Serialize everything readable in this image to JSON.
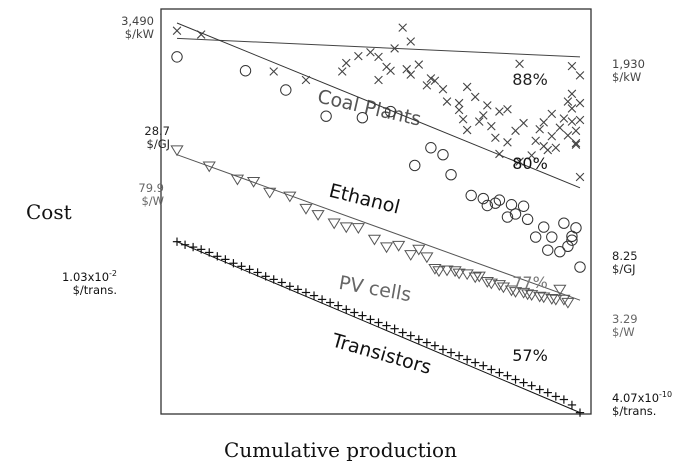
{
  "chart_data": {
    "type": "scatter",
    "ylabel": "Cost",
    "xlabel": "Cumulative production",
    "series": [
      {
        "name": "Coal Plants",
        "rate": "88%",
        "marker": "x",
        "color": "#444444",
        "name_color": "#555555",
        "rate_color": "#222222",
        "start_value": "3,490",
        "start_unit": "$/kW",
        "end_value": "1,930",
        "end_unit": "$/kW",
        "label_color": "#444444",
        "fit": [
          [
            0.0,
            2.0
          ],
          [
            1.0,
            4.4
          ]
        ],
        "points": [
          [
            0.0,
            1.0
          ],
          [
            0.06,
            1.5
          ],
          [
            0.24,
            6.3
          ],
          [
            0.32,
            7.4
          ],
          [
            0.42,
            5.2
          ],
          [
            0.41,
            6.3
          ],
          [
            0.45,
            4.3
          ],
          [
            0.48,
            3.8
          ],
          [
            0.5,
            4.4
          ],
          [
            0.52,
            5.7
          ],
          [
            0.5,
            7.4
          ],
          [
            0.53,
            6.2
          ],
          [
            0.54,
            3.3
          ],
          [
            0.57,
            6.0
          ],
          [
            0.58,
            6.7
          ],
          [
            0.63,
            7.2
          ],
          [
            0.58,
            2.4
          ],
          [
            0.56,
            0.6
          ],
          [
            0.6,
            5.4
          ],
          [
            0.62,
            8.1
          ],
          [
            0.64,
            7.5
          ],
          [
            0.66,
            8.6
          ],
          [
            0.67,
            10.2
          ],
          [
            0.7,
            10.4
          ],
          [
            0.72,
            8.3
          ],
          [
            0.7,
            11.3
          ],
          [
            0.74,
            9.6
          ],
          [
            0.72,
            13.9
          ],
          [
            0.71,
            12.5
          ],
          [
            0.76,
            12.0
          ],
          [
            0.77,
            10.7
          ],
          [
            0.75,
            12.8
          ],
          [
            0.78,
            13.4
          ],
          [
            0.8,
            11.5
          ],
          [
            0.79,
            14.9
          ],
          [
            0.8,
            17.0
          ],
          [
            0.82,
            15.5
          ],
          [
            0.84,
            14.0
          ],
          [
            0.82,
            11.2
          ],
          [
            0.85,
            18.0
          ],
          [
            0.86,
            13.0
          ],
          [
            0.88,
            17.2
          ],
          [
            0.89,
            15.3
          ],
          [
            0.9,
            13.8
          ],
          [
            0.91,
            16.0
          ],
          [
            0.91,
            12.9
          ],
          [
            0.92,
            16.5
          ],
          [
            0.93,
            14.7
          ],
          [
            0.93,
            11.8
          ],
          [
            0.94,
            16.2
          ],
          [
            0.95,
            13.6
          ],
          [
            0.96,
            12.4
          ],
          [
            0.97,
            14.6
          ],
          [
            0.98,
            11.1
          ],
          [
            0.98,
            12.8
          ],
          [
            0.99,
            14.0
          ],
          [
            0.99,
            15.6
          ],
          [
            1.0,
            12.6
          ],
          [
            0.85,
            5.3
          ],
          [
            0.98,
            5.6
          ],
          [
            1.0,
            6.8
          ],
          [
            0.98,
            9.2
          ],
          [
            1.0,
            10.4
          ],
          [
            0.99,
            15.8
          ],
          [
            1.0,
            20.0
          ],
          [
            0.97,
            10.2
          ]
        ]
      },
      {
        "name": "Ethanol",
        "rate": "80%",
        "marker": "o",
        "color": "#333333",
        "name_color": "#111111",
        "rate_color": "#111111",
        "start_value": "28.7",
        "start_unit": "$/GJ",
        "end_value": "8.25",
        "end_unit": "$/GJ",
        "label_color": "#222222",
        "fit": [
          [
            0.0,
            0.0
          ],
          [
            1.0,
            21.4
          ]
        ],
        "points": [
          [
            0.0,
            4.4
          ],
          [
            0.17,
            6.2
          ],
          [
            0.27,
            8.7
          ],
          [
            0.37,
            12.1
          ],
          [
            0.46,
            12.3
          ],
          [
            0.53,
            11.5
          ],
          [
            0.59,
            18.5
          ],
          [
            0.63,
            16.2
          ],
          [
            0.66,
            17.1
          ],
          [
            0.68,
            19.7
          ],
          [
            0.73,
            22.4
          ],
          [
            0.76,
            22.8
          ],
          [
            0.77,
            23.7
          ],
          [
            0.79,
            23.4
          ],
          [
            0.8,
            23.0
          ],
          [
            0.82,
            25.2
          ],
          [
            0.83,
            23.6
          ],
          [
            0.84,
            24.8
          ],
          [
            0.86,
            23.8
          ],
          [
            0.87,
            25.5
          ],
          [
            0.89,
            27.8
          ],
          [
            0.91,
            26.5
          ],
          [
            0.92,
            29.5
          ],
          [
            0.93,
            27.8
          ],
          [
            0.95,
            29.7
          ],
          [
            0.96,
            26.0
          ],
          [
            0.97,
            29.0
          ],
          [
            0.98,
            28.2
          ],
          [
            0.98,
            27.7
          ],
          [
            0.99,
            26.6
          ],
          [
            1.0,
            31.7
          ]
        ]
      },
      {
        "name": "PV cells",
        "rate": "77%",
        "marker": "triangle-down",
        "color": "#555555",
        "name_color": "#666666",
        "rate_color": "#777777",
        "start_value": "79.9",
        "start_unit": "$/W",
        "end_value": "3.29",
        "end_unit": "$/W",
        "label_color": "#666666",
        "fit": [
          [
            0.0,
            17.1
          ],
          [
            1.0,
            36.0
          ]
        ],
        "points": [
          [
            0.0,
            16.5
          ],
          [
            0.08,
            18.6
          ],
          [
            0.15,
            20.3
          ],
          [
            0.19,
            20.6
          ],
          [
            0.23,
            22.0
          ],
          [
            0.28,
            22.5
          ],
          [
            0.32,
            24.1
          ],
          [
            0.35,
            24.9
          ],
          [
            0.39,
            26.0
          ],
          [
            0.42,
            26.5
          ],
          [
            0.45,
            26.6
          ],
          [
            0.49,
            28.1
          ],
          [
            0.52,
            29.1
          ],
          [
            0.55,
            28.9
          ],
          [
            0.58,
            30.1
          ],
          [
            0.6,
            29.4
          ],
          [
            0.62,
            30.4
          ],
          [
            0.64,
            31.9
          ],
          [
            0.65,
            32.2
          ],
          [
            0.67,
            32.1
          ],
          [
            0.69,
            32.2
          ],
          [
            0.7,
            32.5
          ],
          [
            0.72,
            32.6
          ],
          [
            0.74,
            33.0
          ],
          [
            0.75,
            32.9
          ],
          [
            0.77,
            33.6
          ],
          [
            0.78,
            33.8
          ],
          [
            0.8,
            34.0
          ],
          [
            0.81,
            34.3
          ],
          [
            0.83,
            34.7
          ],
          [
            0.84,
            34.9
          ],
          [
            0.86,
            35.0
          ],
          [
            0.87,
            35.2
          ],
          [
            0.88,
            35.3
          ],
          [
            0.9,
            35.5
          ],
          [
            0.91,
            35.6
          ],
          [
            0.93,
            35.8
          ],
          [
            0.94,
            35.9
          ],
          [
            0.96,
            35.9
          ],
          [
            0.97,
            36.3
          ],
          [
            0.95,
            34.6
          ]
        ]
      },
      {
        "name": "Transistors",
        "rate": "57%",
        "marker": "+",
        "color": "#111111",
        "name_color": "#111111",
        "rate_color": "#111111",
        "start_value": "1.03x10-2",
        "start_unit": "$/trans.",
        "end_value": "4.07x10-10",
        "end_unit": "$/trans.",
        "label_color": "#111111",
        "fit": [
          [
            0.0,
            28.4
          ],
          [
            1.0,
            50.6
          ]
        ],
        "points": [
          [
            0.0,
            28.4
          ],
          [
            0.02,
            28.8
          ],
          [
            0.04,
            29.1
          ],
          [
            0.06,
            29.4
          ],
          [
            0.08,
            29.8
          ],
          [
            0.1,
            30.3
          ],
          [
            0.12,
            30.7
          ],
          [
            0.14,
            31.2
          ],
          [
            0.16,
            31.6
          ],
          [
            0.18,
            32.0
          ],
          [
            0.2,
            32.4
          ],
          [
            0.22,
            32.9
          ],
          [
            0.24,
            33.3
          ],
          [
            0.26,
            33.7
          ],
          [
            0.28,
            34.2
          ],
          [
            0.3,
            34.6
          ],
          [
            0.32,
            35.0
          ],
          [
            0.34,
            35.4
          ],
          [
            0.36,
            35.9
          ],
          [
            0.38,
            36.3
          ],
          [
            0.4,
            36.7
          ],
          [
            0.42,
            37.2
          ],
          [
            0.44,
            37.6
          ],
          [
            0.46,
            38.0
          ],
          [
            0.48,
            38.5
          ],
          [
            0.5,
            38.9
          ],
          [
            0.52,
            39.3
          ],
          [
            0.54,
            39.7
          ],
          [
            0.56,
            40.2
          ],
          [
            0.58,
            40.6
          ],
          [
            0.6,
            41.1
          ],
          [
            0.62,
            41.5
          ],
          [
            0.64,
            41.9
          ],
          [
            0.66,
            42.4
          ],
          [
            0.68,
            42.8
          ],
          [
            0.7,
            43.2
          ],
          [
            0.72,
            43.7
          ],
          [
            0.74,
            44.1
          ],
          [
            0.76,
            44.5
          ],
          [
            0.78,
            45.0
          ],
          [
            0.8,
            45.4
          ],
          [
            0.82,
            45.8
          ],
          [
            0.84,
            46.3
          ],
          [
            0.86,
            46.7
          ],
          [
            0.88,
            47.1
          ],
          [
            0.9,
            47.6
          ],
          [
            0.92,
            48.0
          ],
          [
            0.94,
            48.5
          ],
          [
            0.96,
            48.9
          ],
          [
            0.98,
            49.6
          ],
          [
            1.0,
            50.6
          ]
        ]
      }
    ]
  }
}
